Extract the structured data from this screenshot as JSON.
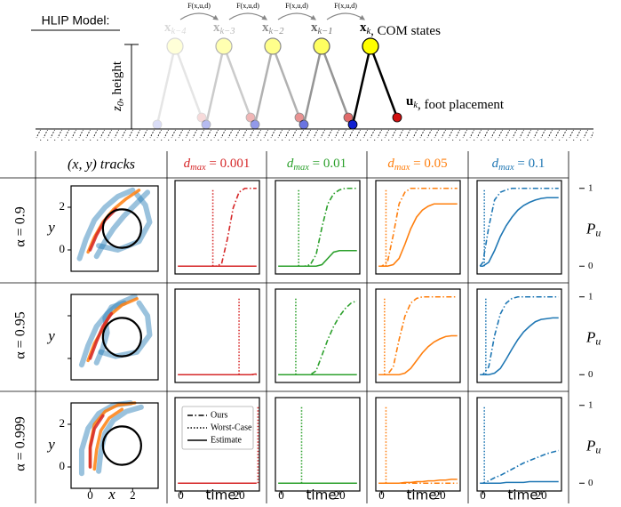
{
  "diagram": {
    "title": "HLIP Model:",
    "height_label": {
      "var": "z",
      "sub": "0",
      "text": ", height"
    },
    "dynamics": [
      "F(x,u,d)",
      "F(x,u,d)",
      "F(x,u,d)",
      "F(x,u,d)"
    ],
    "states": [
      {
        "var": "x",
        "sub": "k−4"
      },
      {
        "var": "x",
        "sub": "k−3"
      },
      {
        "var": "x",
        "sub": "k−2"
      },
      {
        "var": "x",
        "sub": "k−1"
      },
      {
        "var": "x",
        "sub": "k"
      }
    ],
    "state_note": ", COM states",
    "input": {
      "var": "u",
      "sub": "k"
    },
    "input_note": ", foot placement"
  },
  "header": {
    "tracks": "(x, y) tracks",
    "columns": [
      {
        "var": "d",
        "sub": "max",
        "text": " = 0.001",
        "color": "#d62728"
      },
      {
        "var": "d",
        "sub": "max",
        "text": " = 0.01",
        "color": "#2ca02c"
      },
      {
        "var": "d",
        "sub": "max",
        "text": " = 0.05",
        "color": "#ff7f0e"
      },
      {
        "var": "d",
        "sub": "max",
        "text": " = 0.1",
        "color": "#1f77b4"
      }
    ]
  },
  "legend": [
    "Ours",
    "Worst-Case",
    "Estimate"
  ],
  "time_axis": {
    "label": "time",
    "xlim": [
      -2,
      27
    ],
    "xticks": [
      0,
      20
    ],
    "samples": [
      -1,
      0,
      2,
      4,
      6,
      8,
      10,
      12,
      14,
      16,
      18,
      20,
      22,
      24,
      26
    ]
  },
  "prob_axis": {
    "label": {
      "var": "P",
      "sub": "u"
    },
    "ylim": [
      -0.1,
      1.1
    ],
    "yticks": [
      0,
      1
    ]
  },
  "track_axis": {
    "xlabel": "x",
    "ylabel": "y",
    "xlim": [
      -0.9,
      3.2
    ],
    "ylim": [
      -1,
      3
    ],
    "xticks": [
      0,
      2
    ],
    "yticks": [
      0,
      2
    ],
    "obstacle": {
      "x": 1.5,
      "y": 1,
      "r": 0.9
    }
  },
  "rows": [
    {
      "label": "α = 0.9",
      "show_yticks": true,
      "show_xticks": false,
      "tracks": [
        {
          "color": "#1f77b4",
          "x": [
            -0.5,
            -0.2,
            0.2,
            0.7,
            1.3,
            2.0
          ],
          "y": [
            -0.4,
            0.5,
            1.4,
            2.0,
            2.5,
            2.8
          ]
        },
        {
          "color": "#1f77b4",
          "x": [
            0.3,
            0.7,
            1.1,
            1.6,
            2.2,
            2.7
          ],
          "y": [
            -0.3,
            0.4,
            1.0,
            1.6,
            2.2,
            2.7
          ]
        },
        {
          "color": "#1f77b4",
          "x": [
            0.4,
            1.3,
            2.3,
            2.8,
            2.6,
            2.2
          ],
          "y": [
            0.2,
            0.0,
            0.4,
            1.3,
            2.1,
            2.6
          ]
        },
        {
          "color": "#ff7f0e",
          "x": [
            -0.1,
            0.2,
            0.6,
            1.1,
            1.7,
            2.3
          ],
          "y": [
            -0.1,
            0.6,
            1.3,
            1.9,
            2.4,
            2.8
          ]
        },
        {
          "color": "#d62728",
          "x": [
            0.0,
            0.3,
            0.7,
            1.2
          ],
          "y": [
            0.0,
            0.7,
            1.4,
            1.9
          ]
        }
      ],
      "panels": [
        {
          "worst_case": 11,
          "ours": [
            0,
            0,
            0,
            0,
            0,
            0,
            0,
            0,
            0.03,
            0.35,
            0.75,
            0.95,
            1,
            1,
            1
          ],
          "estimate": [
            0,
            0,
            0,
            0,
            0,
            0,
            0,
            0,
            0,
            0,
            0,
            0,
            0,
            0,
            0
          ]
        },
        {
          "worst_case": 6,
          "ours": [
            0,
            0,
            0,
            0,
            0,
            0,
            0.02,
            0.15,
            0.5,
            0.8,
            0.93,
            0.98,
            1,
            1,
            1
          ],
          "estimate": [
            0,
            0,
            0,
            0,
            0,
            0,
            0,
            0,
            0.02,
            0.1,
            0.18,
            0.2,
            0.2,
            0.2,
            0.2
          ]
        },
        {
          "worst_case": 1.5,
          "ours": [
            0,
            0,
            0.05,
            0.4,
            0.8,
            0.95,
            1,
            1,
            1,
            1,
            1,
            1,
            1,
            1,
            1
          ],
          "estimate": [
            0,
            0,
            0,
            0.02,
            0.1,
            0.28,
            0.48,
            0.63,
            0.72,
            0.77,
            0.8,
            0.8,
            0.8,
            0.8,
            0.8
          ]
        },
        {
          "worst_case": 0.5,
          "ours": [
            0,
            0.05,
            0.5,
            0.85,
            0.95,
            0.98,
            1,
            1,
            1,
            1,
            1,
            1,
            1,
            1,
            1
          ],
          "estimate": [
            0,
            0,
            0.05,
            0.2,
            0.38,
            0.52,
            0.63,
            0.72,
            0.78,
            0.82,
            0.85,
            0.87,
            0.88,
            0.88,
            0.88
          ]
        }
      ]
    },
    {
      "label": "α = 0.95",
      "show_yticks": false,
      "show_xticks": false,
      "tracks": [
        {
          "color": "#1f77b4",
          "x": [
            -0.4,
            -0.1,
            0.3,
            0.8,
            1.4,
            2.1
          ],
          "y": [
            -0.3,
            0.6,
            1.5,
            2.1,
            2.6,
            2.9
          ]
        },
        {
          "color": "#1f77b4",
          "x": [
            0.3,
            0.6,
            0.8,
            0.7,
            1.0,
            1.6
          ],
          "y": [
            -0.2,
            0.5,
            1.2,
            1.9,
            2.4,
            2.6
          ]
        },
        {
          "color": "#1f77b4",
          "x": [
            0.5,
            1.2,
            2.2,
            2.8,
            2.7,
            2.3
          ],
          "y": [
            0.3,
            0.1,
            0.3,
            1.1,
            2.0,
            2.6
          ]
        },
        {
          "color": "#ff7f0e",
          "x": [
            -0.1,
            0.2,
            0.6,
            0.9,
            1.5,
            2.2
          ],
          "y": [
            -0.1,
            0.7,
            1.4,
            2.0,
            2.5,
            2.8
          ]
        },
        {
          "color": "#d62728",
          "x": [
            0.0,
            0.3,
            0.6,
            1.0
          ],
          "y": [
            0.0,
            0.8,
            1.5,
            2.1
          ]
        }
      ],
      "panels": [
        {
          "worst_case": 20,
          "ours": [
            0,
            0,
            0,
            0,
            0,
            0,
            0,
            0,
            0,
            0,
            0,
            0,
            0,
            0,
            0
          ],
          "estimate": [
            0,
            0,
            0,
            0,
            0,
            0,
            0,
            0,
            0,
            0,
            0,
            0,
            0,
            0,
            0.01
          ]
        },
        {
          "worst_case": 5,
          "ours": [
            0,
            0,
            0,
            0,
            0,
            0,
            0,
            0.05,
            0.25,
            0.45,
            0.62,
            0.75,
            0.85,
            0.92,
            0.95
          ],
          "estimate": [
            0,
            0,
            0,
            0,
            0,
            0,
            0,
            0,
            0,
            0,
            0,
            0,
            0,
            0,
            0
          ]
        },
        {
          "worst_case": 1,
          "ours": [
            0,
            0,
            0,
            0.1,
            0.45,
            0.75,
            0.92,
            0.98,
            1,
            1,
            1,
            1,
            1,
            1,
            1
          ],
          "estimate": [
            0,
            0,
            0,
            0,
            0,
            0.02,
            0.08,
            0.18,
            0.28,
            0.36,
            0.42,
            0.46,
            0.49,
            0.5,
            0.5
          ]
        },
        {
          "worst_case": 1,
          "ours": [
            0,
            0,
            0.1,
            0.5,
            0.78,
            0.92,
            0.98,
            1,
            1,
            1,
            1,
            1,
            1,
            1,
            1
          ],
          "estimate": [
            0,
            0,
            0,
            0.02,
            0.08,
            0.2,
            0.33,
            0.45,
            0.55,
            0.62,
            0.68,
            0.71,
            0.72,
            0.73,
            0.73
          ]
        }
      ]
    },
    {
      "label": "α = 0.999",
      "show_yticks": true,
      "show_xticks": true,
      "tracks": [
        {
          "color": "#1f77b4",
          "x": [
            -0.4,
            -0.4,
            -0.1,
            0.4,
            1.1,
            1.9
          ],
          "y": [
            -0.3,
            0.8,
            1.8,
            2.5,
            2.9,
            3.0
          ]
        },
        {
          "color": "#1f77b4",
          "x": [
            0.4,
            0.5,
            0.7,
            1.1,
            1.7,
            2.4
          ],
          "y": [
            -0.2,
            0.7,
            1.6,
            2.2,
            2.6,
            2.8
          ]
        },
        {
          "color": "#ff7f0e",
          "x": [
            0.0,
            0.0,
            0.2,
            0.7,
            1.3,
            2.1
          ],
          "y": [
            0.0,
            1.0,
            2.0,
            2.6,
            2.9,
            3.0
          ]
        },
        {
          "color": "#ff7f0e",
          "x": [
            0.2,
            0.3,
            0.5,
            0.9,
            1.5
          ],
          "y": [
            -0.1,
            0.8,
            1.7,
            2.3,
            2.7
          ]
        },
        {
          "color": "#d62728",
          "x": [
            0.0,
            0.0,
            0.2,
            0.6
          ],
          "y": [
            0.0,
            0.9,
            1.8,
            2.4
          ]
        }
      ],
      "panels": [
        {
          "worst_case": 26.5,
          "ours": [
            0,
            0,
            0,
            0,
            0,
            0,
            0,
            0,
            0,
            0,
            0,
            0,
            0,
            0,
            0
          ],
          "estimate": [
            0,
            0,
            0,
            0,
            0,
            0,
            0,
            0,
            0,
            0,
            0,
            0,
            0,
            0,
            0
          ]
        },
        {
          "worst_case": 7,
          "ours": [
            0,
            0,
            0,
            0,
            0,
            0,
            0,
            0,
            0,
            0,
            0,
            0,
            0,
            0,
            0
          ],
          "estimate": [
            0,
            0,
            0,
            0,
            0,
            0,
            0,
            0,
            0,
            0,
            0,
            0,
            0,
            0,
            0
          ]
        },
        {
          "worst_case": 1.5,
          "ours": [
            0,
            0,
            0,
            0,
            0,
            0,
            0,
            0,
            0,
            0,
            0,
            0,
            0,
            0,
            0
          ],
          "estimate": [
            0,
            0,
            0,
            0,
            0,
            0.01,
            0.01,
            0.02,
            0.02,
            0.03,
            0.03,
            0.04,
            0.04,
            0.05,
            0.05
          ]
        },
        {
          "worst_case": 0.5,
          "ours": [
            0,
            0,
            0.03,
            0.07,
            0.1,
            0.14,
            0.18,
            0.22,
            0.26,
            0.29,
            0.32,
            0.35,
            0.38,
            0.4,
            0.42
          ],
          "estimate": [
            0,
            0,
            0,
            0,
            0,
            0.01,
            0.01,
            0.01,
            0.01,
            0.02,
            0.02,
            0.02,
            0.02,
            0.02,
            0.02
          ]
        }
      ]
    }
  ]
}
